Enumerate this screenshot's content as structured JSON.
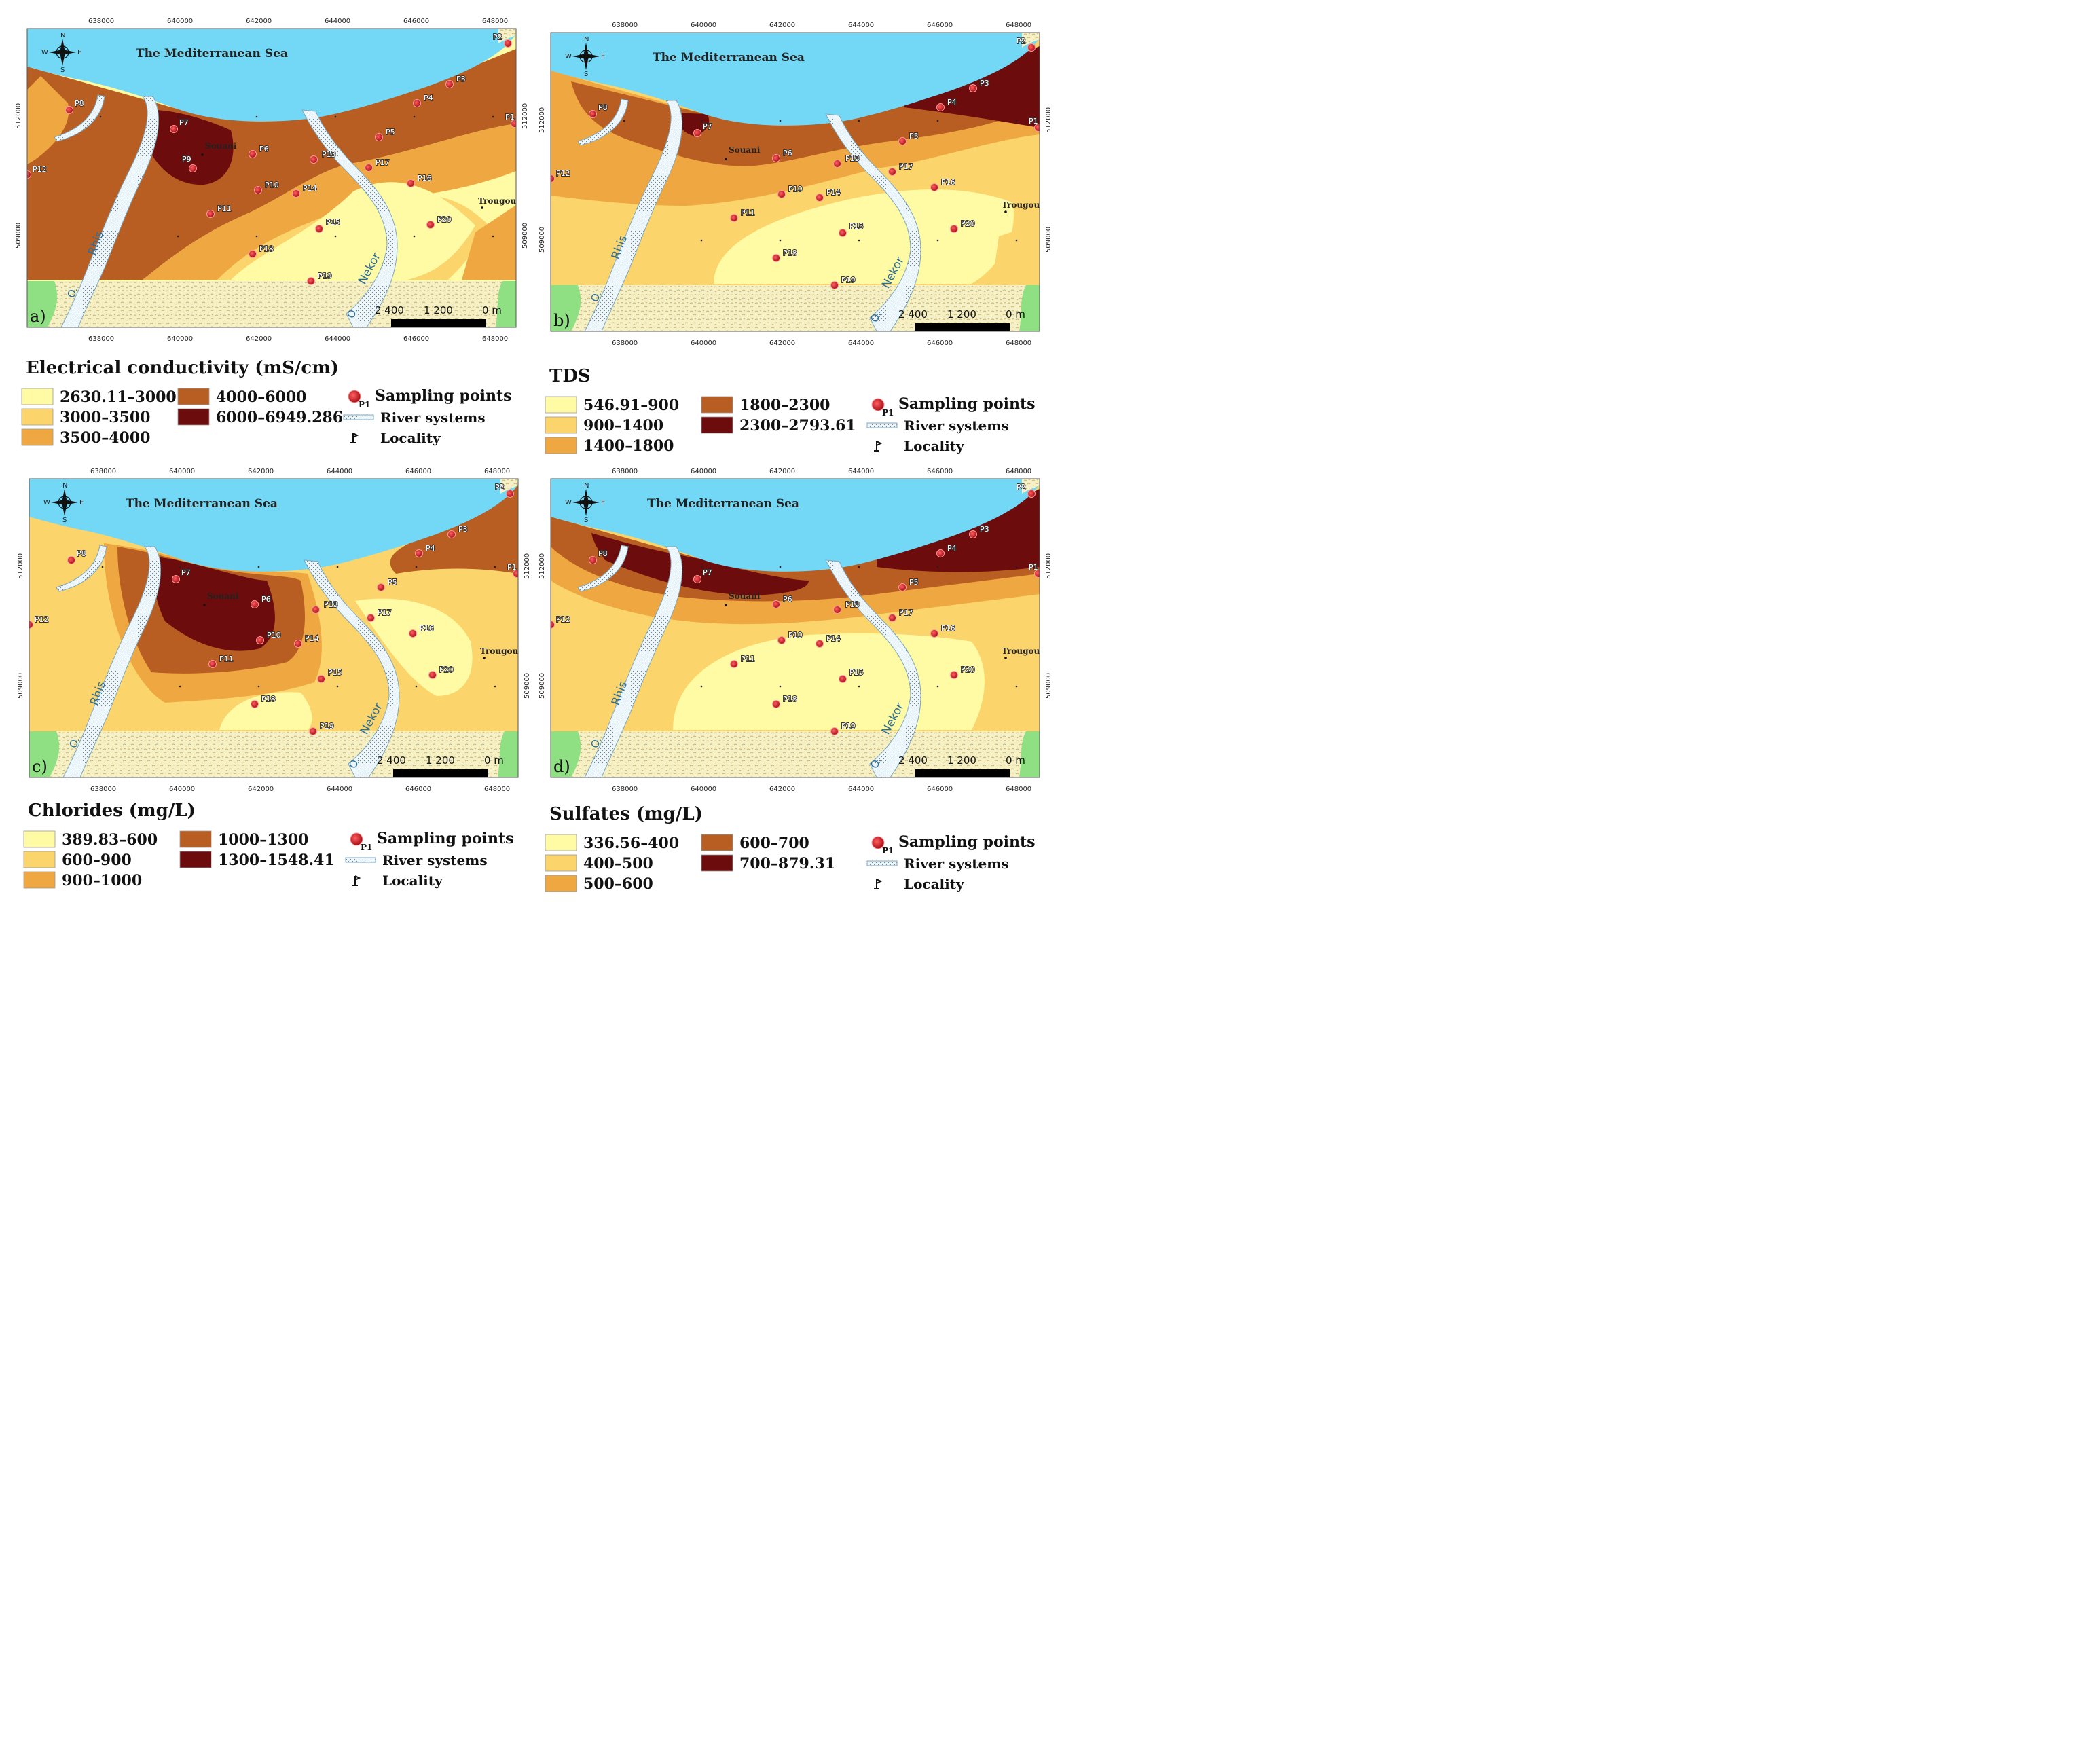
{
  "colors": {
    "sea": "#72d8f6",
    "class1": "#fffaa4",
    "class2": "#fbd46c",
    "class3": "#efa841",
    "class4": "#b85e22",
    "class5": "#6c0c0c",
    "point": "#d0202a",
    "river": "#eef6fa",
    "mountains": "#f5f0c6",
    "edge_green": "#8ee082"
  },
  "axes": {
    "easting_ticks": [
      "638000",
      "640000",
      "642000",
      "644000",
      "646000",
      "648000"
    ],
    "northing_ticks": [
      "512000",
      "509000"
    ]
  },
  "compass": {
    "n": "N",
    "s": "S",
    "e": "E",
    "w": "W"
  },
  "common": {
    "sea_label": "The Mediterranean Sea",
    "locality_souani": "Souani",
    "locality_trougout": "Trougout",
    "river_rhis": "Rhis",
    "river_nekor": "Nekor",
    "river_o": "O.",
    "scale_labels": [
      "2 400",
      "1 200",
      "0 m"
    ]
  },
  "legend_common": {
    "sampling_points": "Sampling points",
    "sampling_symbol": "P1",
    "river_systems": "River systems",
    "locality": "Locality"
  },
  "panels": [
    {
      "letter": "a)",
      "title": "Electrical conductivity (mS/cm)",
      "classes": [
        "2630.11–3000",
        "3000–3500",
        "3500–4000",
        "4000–6000",
        "6000–6949.286"
      ]
    },
    {
      "letter": "b)",
      "title": "TDS",
      "classes": [
        "546.91–900",
        "900–1400",
        "1400–1800",
        "1800–2300",
        "2300–2793.61"
      ]
    },
    {
      "letter": "c)",
      "title": "Chlorides (mg/L)",
      "classes": [
        "389.83–600",
        "600–900",
        "900–1000",
        "1000–1300",
        "1300–1548.41"
      ]
    },
    {
      "letter": "d)",
      "title": "Sulfates (mg/L)",
      "classes": [
        "336.56–400",
        "400–500",
        "500–600",
        "600–700",
        "700–879.31"
      ]
    }
  ],
  "points": [
    "P1",
    "P2",
    "P3",
    "P4",
    "P5",
    "P6",
    "P7",
    "P8",
    "P9",
    "P10",
    "P11",
    "P12",
    "P13",
    "P14",
    "P15",
    "P16",
    "P17",
    "P18",
    "P19",
    "P20"
  ]
}
